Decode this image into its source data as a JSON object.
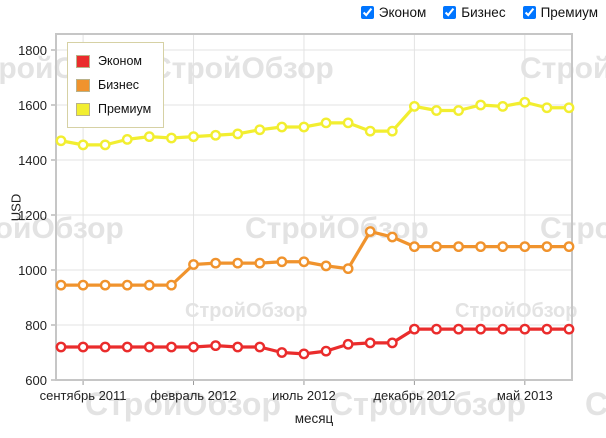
{
  "controls": {
    "series_toggles": [
      {
        "label": "Эконом",
        "checked": true
      },
      {
        "label": "Бизнес",
        "checked": true
      },
      {
        "label": "Премиум",
        "checked": true
      }
    ]
  },
  "watermark": {
    "text": "СтройОбзор",
    "color": "#e3e3e3"
  },
  "colors": {
    "grid": "#e3e3e3",
    "plot_border": "#c6c6c6",
    "tick": "#9a9a9a",
    "axis_text": "#222222",
    "legend_border": "#d6d1a4"
  },
  "chart_data": {
    "type": "line",
    "title": "",
    "xlabel": "месяц",
    "ylabel": "USD",
    "ylim": [
      600,
      1800
    ],
    "yticks": [
      600,
      800,
      1000,
      1200,
      1400,
      1600,
      1800
    ],
    "grid": true,
    "legend_position": "top-left-inside",
    "n_points": 24,
    "categories": [
      "2011-08",
      "2011-09",
      "2011-10",
      "2011-11",
      "2011-12",
      "2012-01",
      "2012-02",
      "2012-03",
      "2012-04",
      "2012-05",
      "2012-06",
      "2012-07",
      "2012-08",
      "2012-09",
      "2012-10",
      "2012-11",
      "2012-12",
      "2013-01",
      "2013-02",
      "2013-03",
      "2013-04",
      "2013-05",
      "2013-06",
      "2013-07"
    ],
    "x_tick_labels": [
      {
        "label": "сентябрь 2011",
        "index": 1
      },
      {
        "label": "февраль 2012",
        "index": 6
      },
      {
        "label": "июль 2012",
        "index": 11
      },
      {
        "label": "декабрь 2012",
        "index": 16
      },
      {
        "label": "май 2013",
        "index": 21
      }
    ],
    "series": [
      {
        "name": "Эконом",
        "color": "#ea2c2c",
        "values": [
          720,
          720,
          720,
          720,
          720,
          720,
          720,
          725,
          720,
          720,
          700,
          695,
          705,
          730,
          735,
          735,
          785,
          785,
          785,
          785,
          785,
          785,
          785,
          785
        ]
      },
      {
        "name": "Бизнес",
        "color": "#f0932d",
        "values": [
          945,
          945,
          945,
          945,
          945,
          945,
          1020,
          1025,
          1025,
          1025,
          1030,
          1030,
          1015,
          1005,
          1140,
          1120,
          1085,
          1085,
          1085,
          1085,
          1085,
          1085,
          1085,
          1085
        ]
      },
      {
        "name": "Премиум",
        "color": "#f2ee30",
        "values": [
          1470,
          1455,
          1455,
          1475,
          1485,
          1480,
          1485,
          1490,
          1495,
          1510,
          1520,
          1520,
          1535,
          1535,
          1505,
          1505,
          1595,
          1580,
          1580,
          1600,
          1595,
          1610,
          1590,
          1590
        ]
      }
    ]
  }
}
